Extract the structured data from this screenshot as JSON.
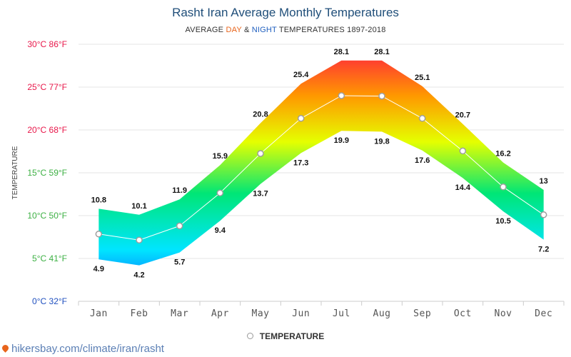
{
  "title": "Rasht Iran Average Monthly Temperatures",
  "subtitle": {
    "prefix": "AVERAGE ",
    "day": "DAY",
    "amp": " & ",
    "night": "NIGHT",
    "suffix": " TEMPERATURES 1897-2018"
  },
  "legend": {
    "label": "TEMPERATURE"
  },
  "source": "hikersbay.com/climate/iran/rasht",
  "colors": {
    "day_hot": "#ff1744",
    "warm": "#ff9800",
    "mild": "#e5ff00",
    "cool": "#00e676",
    "cold": "#00e5ff",
    "coldest": "#0d47ff",
    "title": "#1f4e79"
  },
  "chart_data": {
    "type": "area",
    "title": "Rasht Iran Average Monthly Temperatures",
    "ylabel": "TEMPERATURE",
    "xlabel": "",
    "ylim": [
      0,
      30
    ],
    "yticks": [
      {
        "value": 0,
        "label": "0°C 32°F",
        "color": "#1f4fbf"
      },
      {
        "value": 5,
        "label": "5°C 41°F",
        "color": "#3cb043"
      },
      {
        "value": 10,
        "label": "10°C 50°F",
        "color": "#3cb043"
      },
      {
        "value": 15,
        "label": "15°C 59°F",
        "color": "#3cb043"
      },
      {
        "value": 20,
        "label": "20°C 68°F",
        "color": "#e8174a"
      },
      {
        "value": 25,
        "label": "25°C 77°F",
        "color": "#e8174a"
      },
      {
        "value": 30,
        "label": "30°C 86°F",
        "color": "#e8174a"
      }
    ],
    "categories": [
      "Jan",
      "Feb",
      "Mar",
      "Apr",
      "May",
      "Jun",
      "Jul",
      "Aug",
      "Sep",
      "Oct",
      "Nov",
      "Dec"
    ],
    "series": [
      {
        "name": "Day",
        "values": [
          10.8,
          10.1,
          11.9,
          15.9,
          20.8,
          25.4,
          28.1,
          28.1,
          25.1,
          20.7,
          16.2,
          13
        ]
      },
      {
        "name": "Night",
        "values": [
          4.9,
          4.2,
          5.7,
          9.4,
          13.7,
          17.3,
          19.9,
          19.8,
          17.6,
          14.4,
          10.5,
          7.2
        ]
      },
      {
        "name": "Temperature",
        "values": [
          7.85,
          7.15,
          8.8,
          12.65,
          17.25,
          21.35,
          24.0,
          23.95,
          21.35,
          17.55,
          13.35,
          10.1
        ]
      }
    ]
  }
}
